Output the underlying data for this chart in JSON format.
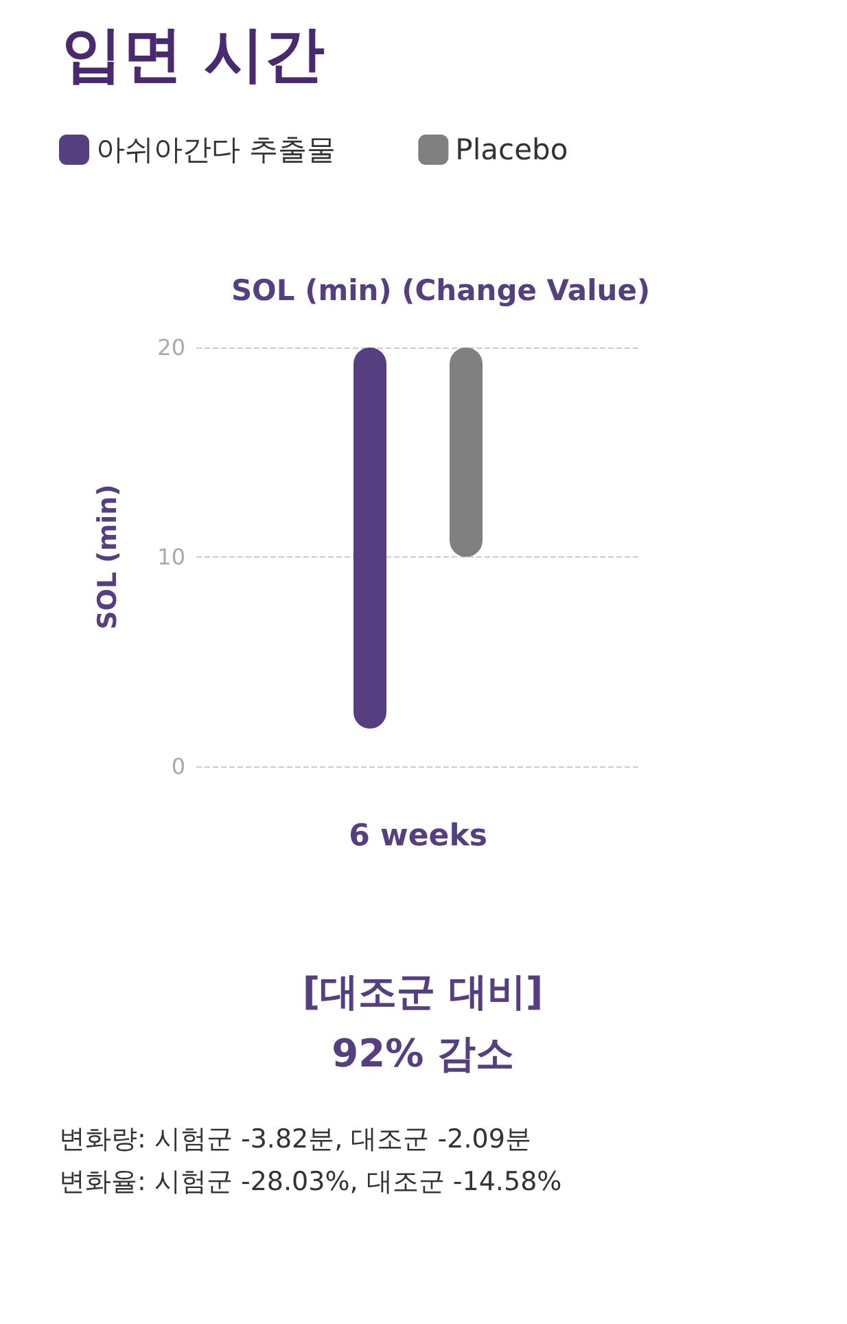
{
  "chart_data": {
    "type": "bar",
    "title": "입면 시간",
    "subtitle": "SOL (min) (Change Value)",
    "ylabel": "SOL (min)",
    "categories": [
      "6 weeks"
    ],
    "series": [
      {
        "name": "아쉬아간다 추출물",
        "color": "#553f80",
        "values": [
          18.2
        ],
        "base": [
          1.8
        ]
      },
      {
        "name": "Placebo",
        "color": "#808080",
        "values": [
          10
        ],
        "base": [
          10
        ]
      }
    ],
    "ylim": [
      0,
      20
    ],
    "yticks": [
      0,
      10,
      20
    ],
    "grid": "y",
    "legend": "top left",
    "annotations": [
      "[대조군 대비]",
      "92% 감소",
      "변화량: 시험군 -3.82분, 대조군 -2.09분",
      "변화율: 시험군 -28.03%, 대조군 -14.58%"
    ]
  }
}
